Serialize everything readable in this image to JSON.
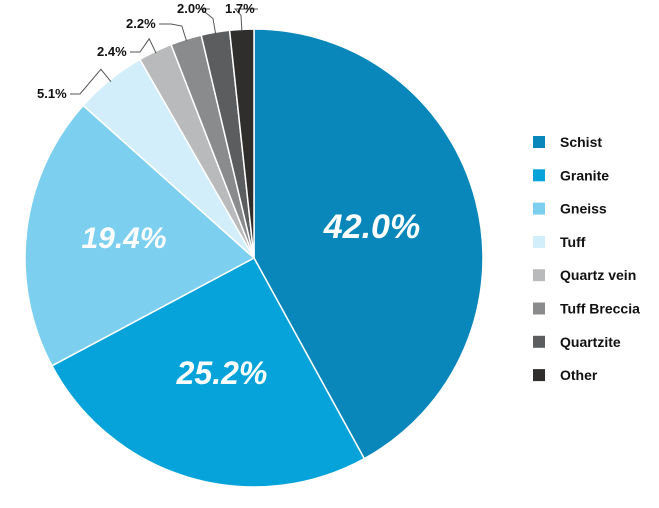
{
  "chart_data": {
    "type": "pie",
    "title": "",
    "legend_position": "right",
    "start": "top",
    "direction": "clockwise",
    "slices": [
      {
        "label": "Schist",
        "value": 42.0,
        "display": "42.0%",
        "color": "#0a87ba",
        "label_style": "inside"
      },
      {
        "label": "Granite",
        "value": 25.2,
        "display": "25.2%",
        "color": "#05a3d9",
        "label_style": "inside"
      },
      {
        "label": "Gneiss",
        "value": 19.4,
        "display": "19.4%",
        "color": "#7ccfee",
        "label_style": "inside"
      },
      {
        "label": "Tuff",
        "value": 5.1,
        "display": "5.1%",
        "color": "#d2eefa",
        "label_style": "outside"
      },
      {
        "label": "Quartz vein",
        "value": 2.4,
        "display": "2.4%",
        "color": "#b9babb",
        "label_style": "outside"
      },
      {
        "label": "Tuff Breccia",
        "value": 2.2,
        "display": "2.2%",
        "color": "#8a8b8d",
        "label_style": "outside"
      },
      {
        "label": "Quartzite",
        "value": 2.0,
        "display": "2.0%",
        "color": "#5c5d5f",
        "label_style": "outside"
      },
      {
        "label": "Other",
        "value": 1.7,
        "display": "1.7%",
        "color": "#302e2d",
        "label_style": "outside"
      }
    ]
  }
}
